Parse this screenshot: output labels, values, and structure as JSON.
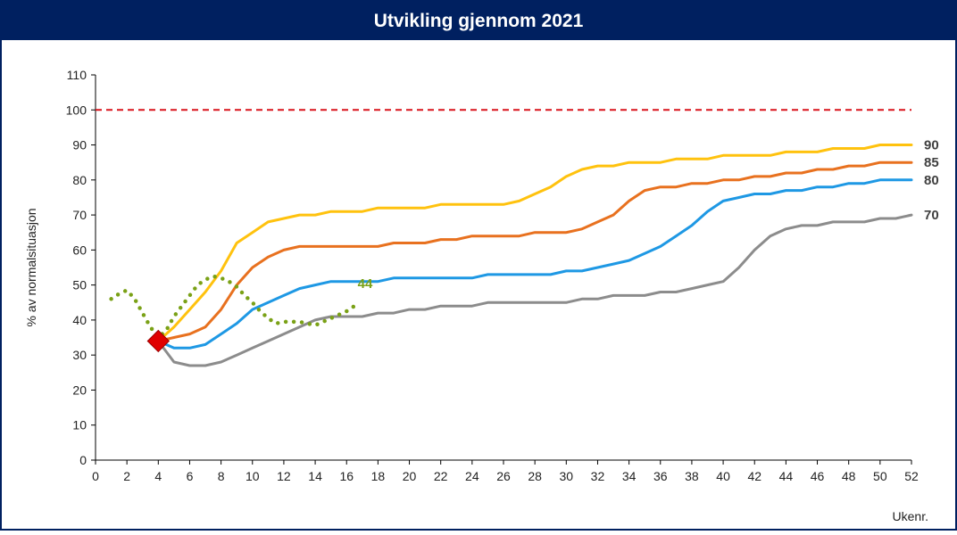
{
  "chart_data": {
    "type": "line",
    "title": "Utvikling gjennom 2021",
    "ylabel": "% av normalsituasjon",
    "xlabel": "Ukenr.",
    "xlim": [
      0,
      52
    ],
    "xticks": [
      0,
      2,
      4,
      6,
      8,
      10,
      12,
      14,
      16,
      18,
      20,
      22,
      24,
      26,
      28,
      30,
      32,
      34,
      36,
      38,
      40,
      42,
      44,
      46,
      48,
      50,
      52
    ],
    "ylim": [
      0,
      110
    ],
    "yticks": [
      0,
      10,
      20,
      30,
      40,
      50,
      60,
      70,
      80,
      90,
      100,
      110
    ],
    "reference_line": {
      "value": 100,
      "color": "#d9141c",
      "style": "dashed"
    },
    "marker": {
      "x": 4,
      "y": 34,
      "color": "#e00000"
    },
    "series": [
      {
        "color": "#ffc20e",
        "style": "solid",
        "x": [
          4,
          5,
          6,
          7,
          8,
          9,
          10,
          11,
          12,
          13,
          14,
          15,
          16,
          17,
          18,
          19,
          20,
          21,
          22,
          23,
          24,
          25,
          26,
          27,
          28,
          29,
          30,
          31,
          32,
          33,
          34,
          35,
          36,
          37,
          38,
          39,
          40,
          41,
          42,
          43,
          44,
          45,
          46,
          47,
          48,
          49,
          50,
          51,
          52
        ],
        "values": [
          34,
          38,
          43,
          48,
          54,
          62,
          65,
          68,
          69,
          70,
          70,
          71,
          71,
          71,
          72,
          72,
          72,
          72,
          73,
          73,
          73,
          73,
          73,
          74,
          76,
          78,
          81,
          83,
          84,
          84,
          85,
          85,
          85,
          86,
          86,
          86,
          87,
          87,
          87,
          87,
          88,
          88,
          88,
          89,
          89,
          89,
          90,
          90,
          90
        ]
      },
      {
        "color": "#e8711f",
        "style": "solid",
        "x": [
          4,
          5,
          6,
          7,
          8,
          9,
          10,
          11,
          12,
          13,
          14,
          15,
          16,
          17,
          18,
          19,
          20,
          21,
          22,
          23,
          24,
          25,
          26,
          27,
          28,
          29,
          30,
          31,
          32,
          33,
          34,
          35,
          36,
          37,
          38,
          39,
          40,
          41,
          42,
          43,
          44,
          45,
          46,
          47,
          48,
          49,
          50,
          51,
          52
        ],
        "values": [
          34,
          35,
          36,
          38,
          43,
          50,
          55,
          58,
          60,
          61,
          61,
          61,
          61,
          61,
          61,
          62,
          62,
          62,
          63,
          63,
          64,
          64,
          64,
          64,
          65,
          65,
          65,
          66,
          68,
          70,
          74,
          77,
          78,
          78,
          79,
          79,
          80,
          80,
          81,
          81,
          82,
          82,
          83,
          83,
          84,
          84,
          85,
          85,
          85
        ]
      },
      {
        "color": "#1e98e4",
        "style": "solid",
        "x": [
          4,
          5,
          6,
          7,
          8,
          9,
          10,
          11,
          12,
          13,
          14,
          15,
          16,
          17,
          18,
          19,
          20,
          21,
          22,
          23,
          24,
          25,
          26,
          27,
          28,
          29,
          30,
          31,
          32,
          33,
          34,
          35,
          36,
          37,
          38,
          39,
          40,
          41,
          42,
          43,
          44,
          45,
          46,
          47,
          48,
          49,
          50,
          51,
          52
        ],
        "values": [
          34,
          32,
          32,
          33,
          36,
          39,
          43,
          45,
          47,
          49,
          50,
          51,
          51,
          51,
          51,
          52,
          52,
          52,
          52,
          52,
          52,
          53,
          53,
          53,
          53,
          53,
          54,
          54,
          55,
          56,
          57,
          59,
          61,
          64,
          67,
          71,
          74,
          75,
          76,
          76,
          77,
          77,
          78,
          78,
          79,
          79,
          80,
          80,
          80
        ]
      },
      {
        "color": "#8c8c8c",
        "style": "solid",
        "x": [
          4,
          5,
          6,
          7,
          8,
          9,
          10,
          11,
          12,
          13,
          14,
          15,
          16,
          17,
          18,
          19,
          20,
          21,
          22,
          23,
          24,
          25,
          26,
          27,
          28,
          29,
          30,
          31,
          32,
          33,
          34,
          35,
          36,
          37,
          38,
          39,
          40,
          41,
          42,
          43,
          44,
          45,
          46,
          47,
          48,
          49,
          50,
          51,
          52
        ],
        "values": [
          34,
          28,
          27,
          27,
          28,
          30,
          32,
          34,
          36,
          38,
          40,
          41,
          41,
          41,
          42,
          42,
          43,
          43,
          44,
          44,
          44,
          45,
          45,
          45,
          45,
          45,
          45,
          46,
          46,
          47,
          47,
          47,
          48,
          48,
          49,
          50,
          51,
          55,
          60,
          64,
          66,
          67,
          67,
          68,
          68,
          68,
          69,
          69,
          70
        ]
      },
      {
        "color": "#7aa116",
        "style": "dotted",
        "x": [
          1,
          1.5,
          2,
          2.5,
          3,
          3.5,
          4,
          4.5,
          5,
          5.5,
          6,
          6.5,
          7,
          7.5,
          8,
          8.5,
          9,
          9.5,
          10,
          10.5,
          11,
          11.5,
          12,
          12.5,
          13,
          13.5,
          14,
          14.5,
          15,
          15.5,
          16,
          16.5
        ],
        "values": [
          46,
          47.5,
          48.5,
          46,
          42,
          38,
          35,
          37,
          41,
          44,
          47,
          50,
          51.5,
          52.5,
          52,
          51,
          49.5,
          47,
          45,
          42.5,
          40.5,
          39,
          39.5,
          39.5,
          39.5,
          39,
          38.5,
          39.5,
          40.5,
          41.5,
          42.5,
          44
        ]
      }
    ]
  }
}
